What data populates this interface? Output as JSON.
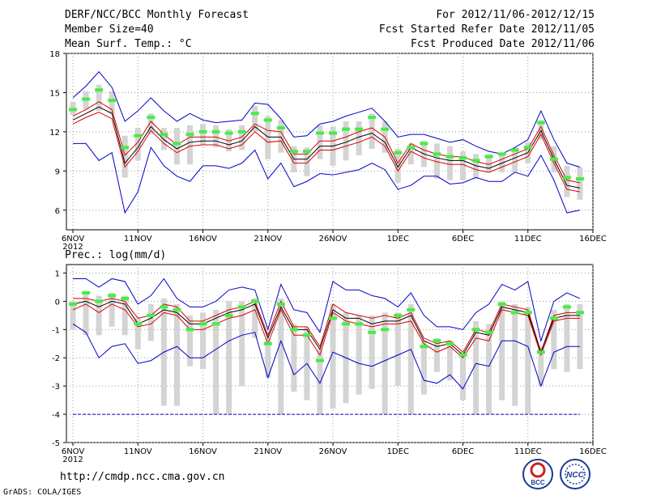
{
  "header": {
    "title": "DERF/NCC/BCC Monthly Forecast",
    "member": "Member Size=40",
    "variable": "Mean Surf. Temp.: °C",
    "period": "For 2012/11/06-2012/12/15",
    "started": "Fcst Started Refer Date 2012/11/05",
    "produced": "Fcst Produced Date 2012/11/06"
  },
  "precip_label": "Prec.: log(mm/d)",
  "footer": {
    "url": "http://cmdp.ncc.cma.gov.cn",
    "credit": "GrADS: COLA/IGES",
    "logo_left": "BCC",
    "logo_right": "NCC"
  },
  "colors": {
    "box": "#d4d4d4",
    "median": "#44ee44",
    "mean": "#000000",
    "spread": "#dd0000",
    "extreme": "#0000cc"
  },
  "chart_data": [
    {
      "type": "line",
      "name": "temperature",
      "title": "Mean Surf. Temp.: °C",
      "xlabel": "",
      "ylabel": "°C",
      "ylim": [
        4.5,
        18
      ],
      "yticks": [
        6,
        9,
        12,
        15,
        18
      ],
      "xticks": [
        {
          "day": 0,
          "label": "6NOV",
          "sub": "2012"
        },
        {
          "day": 5,
          "label": "11NOV"
        },
        {
          "day": 10,
          "label": "16NOV"
        },
        {
          "day": 15,
          "label": "21NOV"
        },
        {
          "day": 20,
          "label": "26NOV"
        },
        {
          "day": 25,
          "label": "1DEC"
        },
        {
          "day": 30,
          "label": "6DEC"
        },
        {
          "day": 35,
          "label": "11DEC"
        },
        {
          "day": 40,
          "label": "16DEC"
        }
      ],
      "days": [
        0,
        1,
        2,
        3,
        4,
        5,
        6,
        7,
        8,
        9,
        10,
        11,
        12,
        13,
        14,
        15,
        16,
        17,
        18,
        19,
        20,
        21,
        22,
        23,
        24,
        25,
        26,
        27,
        28,
        29,
        30,
        31,
        32,
        33,
        34,
        35,
        36,
        37,
        38,
        39
      ],
      "max": [
        14.6,
        15.5,
        16.6,
        15.4,
        12.8,
        13.6,
        14.6,
        13.6,
        12.8,
        13.4,
        12.9,
        12.7,
        12.8,
        12.9,
        14.2,
        14.1,
        13.0,
        11.6,
        11.7,
        12.6,
        12.8,
        13.2,
        13.5,
        13.8,
        12.8,
        11.6,
        11.8,
        11.8,
        11.5,
        11.2,
        11.4,
        10.9,
        10.5,
        10.3,
        10.8,
        11.4,
        13.6,
        11.4,
        9.6,
        9.3
      ],
      "mean_plus": [
        13.2,
        13.7,
        14.3,
        13.7,
        10.2,
        11.2,
        12.8,
        11.8,
        11.0,
        11.6,
        11.6,
        11.6,
        11.3,
        11.6,
        12.6,
        12.1,
        12.0,
        10.3,
        10.3,
        11.3,
        11.3,
        11.6,
        12.0,
        12.3,
        11.6,
        9.6,
        11.1,
        10.6,
        10.3,
        10.1,
        10.1,
        9.7,
        9.5,
        9.9,
        10.3,
        10.7,
        12.4,
        10.2,
        8.3,
        8.1
      ],
      "mean": [
        12.9,
        13.4,
        13.9,
        13.4,
        9.6,
        10.8,
        12.4,
        11.4,
        10.7,
        11.2,
        11.3,
        11.3,
        11.0,
        11.3,
        12.4,
        11.6,
        11.6,
        9.9,
        9.9,
        10.9,
        10.9,
        11.2,
        11.6,
        11.9,
        11.2,
        9.3,
        10.8,
        10.3,
        10.0,
        9.8,
        9.8,
        9.4,
        9.2,
        9.6,
        10.0,
        10.4,
        12.1,
        9.9,
        7.9,
        7.7
      ],
      "mean_minus": [
        12.6,
        13.1,
        13.5,
        13.0,
        9.3,
        10.5,
        12.1,
        11.1,
        10.4,
        10.9,
        11.0,
        11.0,
        10.7,
        11.0,
        12.0,
        11.2,
        11.3,
        9.6,
        9.6,
        10.6,
        10.6,
        10.9,
        11.2,
        11.6,
        10.9,
        9.0,
        10.5,
        10.0,
        9.7,
        9.5,
        9.5,
        9.1,
        8.9,
        9.3,
        9.7,
        10.1,
        11.8,
        9.6,
        7.6,
        7.4
      ],
      "min": [
        11.1,
        11.1,
        9.8,
        10.4,
        5.8,
        7.4,
        10.8,
        9.4,
        8.6,
        8.2,
        9.4,
        9.4,
        9.2,
        9.6,
        10.6,
        8.4,
        9.6,
        7.8,
        8.2,
        8.8,
        8.7,
        8.9,
        9.1,
        9.6,
        9.1,
        7.6,
        7.9,
        8.6,
        8.6,
        8.0,
        8.1,
        8.5,
        8.2,
        8.2,
        8.9,
        8.6,
        10.2,
        8.3,
        5.8,
        6.0
      ],
      "box_top": [
        14.3,
        15.1,
        15.6,
        15.1,
        11.7,
        12.3,
        13.4,
        12.3,
        12.3,
        12.5,
        12.6,
        12.5,
        12.2,
        12.5,
        14.0,
        13.2,
        12.9,
        10.9,
        10.8,
        12.5,
        12.4,
        12.8,
        12.8,
        13.4,
        12.8,
        10.7,
        11.1,
        11.3,
        11.1,
        10.9,
        10.5,
        10.3,
        10.3,
        10.3,
        10.8,
        11.2,
        12.9,
        10.9,
        9.4,
        9.3
      ],
      "box_bottom": [
        13.3,
        13.7,
        13.6,
        13.4,
        8.5,
        9.8,
        11.8,
        10.6,
        9.5,
        9.5,
        11.0,
        10.8,
        10.5,
        10.6,
        12.0,
        9.9,
        10.4,
        8.9,
        8.6,
        9.9,
        9.4,
        9.8,
        10.2,
        10.7,
        10.4,
        8.1,
        9.5,
        9.3,
        8.4,
        8.3,
        8.3,
        8.4,
        8.9,
        8.9,
        8.9,
        9.6,
        11.4,
        8.9,
        7.0,
        6.8
      ],
      "median": [
        13.7,
        14.5,
        15.2,
        14.4,
        10.8,
        11.7,
        13.1,
        11.8,
        11.1,
        11.8,
        12.0,
        12.0,
        11.9,
        12.0,
        13.4,
        12.9,
        12.3,
        10.5,
        10.5,
        11.9,
        11.9,
        12.2,
        12.2,
        13.1,
        12.2,
        10.4,
        10.8,
        11.1,
        10.3,
        10.1,
        10.0,
        9.8,
        10.1,
        10.3,
        10.6,
        10.8,
        12.7,
        9.9,
        8.5,
        8.4
      ]
    },
    {
      "type": "line",
      "name": "precipitation",
      "title": "Prec.: log(mm/d)",
      "xlabel": "",
      "ylabel": "log(mm/d)",
      "ylim": [
        -5,
        1.3
      ],
      "yticks": [
        -5,
        -4,
        -3,
        -2,
        -1,
        0,
        1
      ],
      "xticks": [
        {
          "day": 0,
          "label": "6NOV",
          "sub": "2012"
        },
        {
          "day": 5,
          "label": "11NOV"
        },
        {
          "day": 10,
          "label": "16NOV"
        },
        {
          "day": 15,
          "label": "21NOV"
        },
        {
          "day": 20,
          "label": "26NOV"
        },
        {
          "day": 25,
          "label": "1DEC"
        },
        {
          "day": 30,
          "label": "6DEC"
        },
        {
          "day": 35,
          "label": "11DEC"
        },
        {
          "day": 40,
          "label": "16DEC"
        }
      ],
      "days": [
        0,
        1,
        2,
        3,
        4,
        5,
        6,
        7,
        8,
        9,
        10,
        11,
        12,
        13,
        14,
        15,
        16,
        17,
        18,
        19,
        20,
        21,
        22,
        23,
        24,
        25,
        26,
        27,
        28,
        29,
        30,
        31,
        32,
        33,
        34,
        35,
        36,
        37,
        38,
        39
      ],
      "max": [
        0.8,
        0.8,
        0.5,
        0.8,
        0.7,
        -0.1,
        0.2,
        0.8,
        0.1,
        -0.2,
        -0.2,
        0.0,
        0.4,
        0.5,
        0.4,
        -1.0,
        0.6,
        -0.3,
        -0.4,
        -1.1,
        0.7,
        0.4,
        0.4,
        0.2,
        0.1,
        -0.2,
        0.3,
        -0.5,
        -0.9,
        -0.9,
        -1.0,
        -0.4,
        -0.1,
        0.6,
        0.4,
        0.7,
        -1.4,
        0.0,
        0.3,
        0.1
      ],
      "mean_plus": [
        0.1,
        0.1,
        0.0,
        0.1,
        0.0,
        -0.6,
        -0.5,
        -0.1,
        -0.2,
        -0.7,
        -0.7,
        -0.5,
        -0.3,
        -0.2,
        0.0,
        -1.2,
        0.0,
        -0.9,
        -0.9,
        -1.6,
        -0.1,
        -0.4,
        -0.5,
        -0.6,
        -0.5,
        -0.6,
        -0.4,
        -1.3,
        -1.5,
        -1.4,
        -1.8,
        -1.0,
        -1.1,
        -0.1,
        -0.2,
        -0.3,
        -1.8,
        -0.5,
        -0.4,
        -0.4
      ],
      "mean": [
        -0.1,
        0.0,
        -0.2,
        0.0,
        -0.1,
        -0.8,
        -0.6,
        -0.3,
        -0.4,
        -0.8,
        -0.8,
        -0.6,
        -0.4,
        -0.3,
        -0.1,
        -1.3,
        -0.2,
        -1.0,
        -1.0,
        -1.7,
        -0.3,
        -0.6,
        -0.6,
        -0.8,
        -0.7,
        -0.7,
        -0.5,
        -1.4,
        -1.6,
        -1.5,
        -1.9,
        -1.1,
        -1.2,
        -0.2,
        -0.3,
        -0.4,
        -1.8,
        -0.6,
        -0.5,
        -0.5
      ],
      "mean_minus": [
        -0.3,
        -0.1,
        -0.4,
        -0.1,
        -0.3,
        -0.9,
        -0.8,
        -0.4,
        -0.5,
        -1.0,
        -1.0,
        -0.8,
        -0.6,
        -0.5,
        -0.3,
        -1.5,
        -0.3,
        -1.2,
        -1.2,
        -1.9,
        -0.4,
        -0.7,
        -0.8,
        -0.9,
        -0.8,
        -0.8,
        -0.7,
        -1.5,
        -1.8,
        -1.6,
        -2.0,
        -1.3,
        -1.4,
        -0.3,
        -0.4,
        -0.5,
        -1.9,
        -0.7,
        -0.6,
        -0.6
      ],
      "min": [
        -0.8,
        -1.1,
        -2.0,
        -1.6,
        -1.5,
        -2.2,
        -2.1,
        -1.8,
        -1.6,
        -2.0,
        -2.0,
        -1.7,
        -1.4,
        -1.2,
        -1.1,
        -2.7,
        -1.4,
        -2.6,
        -2.2,
        -2.9,
        -1.8,
        -2.0,
        -2.2,
        -2.3,
        -2.1,
        -1.9,
        -1.7,
        -2.8,
        -2.9,
        -2.6,
        -3.1,
        -2.2,
        -2.3,
        -1.4,
        -1.4,
        -1.6,
        -3.0,
        -1.8,
        -1.6,
        -1.6
      ],
      "min_floor": -4.0,
      "box_top": [
        0.0,
        0.3,
        0.2,
        0.3,
        0.2,
        -0.6,
        -0.1,
        0.1,
        -0.1,
        -0.5,
        -0.4,
        -0.3,
        0.0,
        0.0,
        0.1,
        -1.3,
        0.1,
        -0.8,
        -0.9,
        -1.7,
        -0.1,
        -0.4,
        -0.5,
        -0.5,
        -0.4,
        -0.4,
        -0.1,
        -1.4,
        -1.3,
        -1.4,
        -1.8,
        -0.7,
        -0.8,
        0.0,
        -0.1,
        -0.2,
        -1.6,
        -0.3,
        -0.1,
        -0.1
      ],
      "box_bottom": [
        -1.0,
        -1.2,
        -1.2,
        -0.9,
        -1.2,
        -1.7,
        -1.4,
        -3.7,
        -3.7,
        -2.3,
        -2.4,
        -4.0,
        -4.0,
        -3.0,
        -1.3,
        -2.7,
        -4.0,
        -3.2,
        -3.5,
        -4.0,
        -3.8,
        -3.6,
        -3.3,
        -3.1,
        -4.0,
        -3.0,
        -4.0,
        -3.3,
        -2.5,
        -2.8,
        -3.5,
        -4.0,
        -4.0,
        -3.5,
        -3.7,
        -4.0,
        -3.0,
        -2.4,
        -2.5,
        -2.4
      ],
      "median": [
        -0.1,
        0.3,
        0.0,
        0.2,
        0.1,
        -0.8,
        -0.5,
        -0.2,
        -0.3,
        -1.0,
        -0.8,
        -0.8,
        -0.5,
        -0.2,
        0.0,
        -1.5,
        -0.1,
        -1.0,
        -1.2,
        -2.1,
        -0.6,
        -0.8,
        -0.8,
        -1.1,
        -1.0,
        -0.5,
        -0.3,
        -1.6,
        -1.4,
        -1.5,
        -1.9,
        -1.0,
        -1.1,
        -0.1,
        -0.4,
        -0.4,
        -1.8,
        -0.6,
        -0.2,
        -0.4
      ]
    }
  ]
}
